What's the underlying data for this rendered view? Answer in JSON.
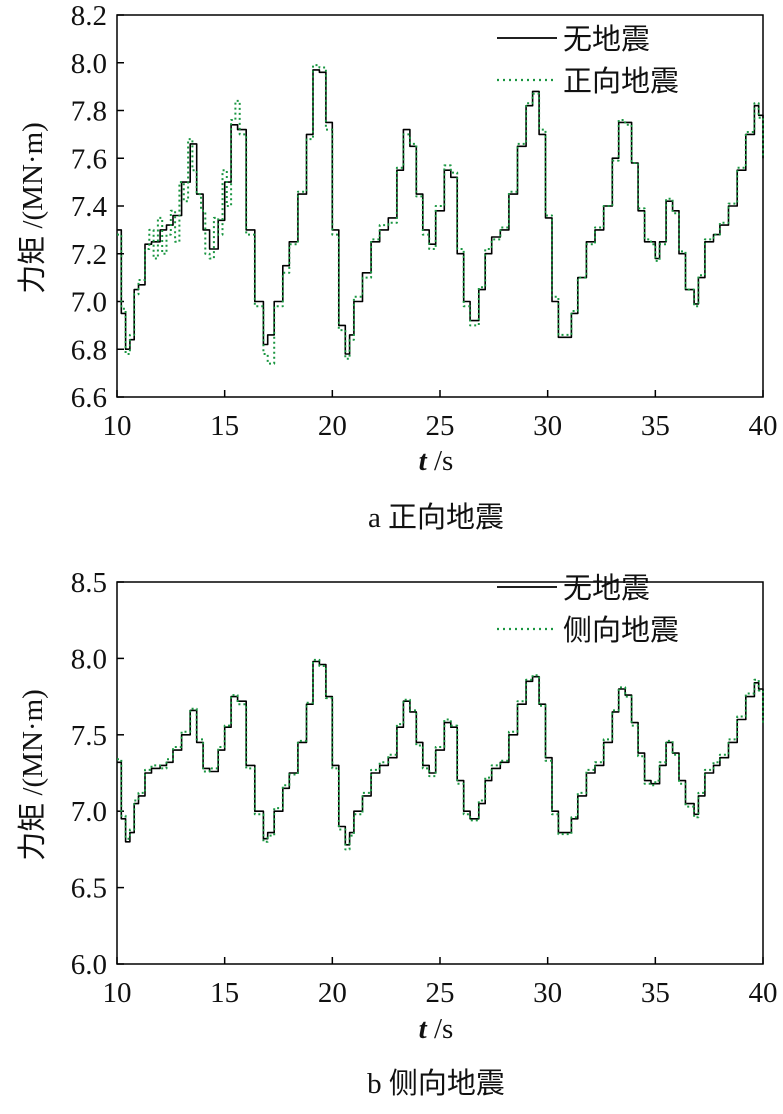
{
  "chart_data": [
    {
      "type": "line",
      "caption_letter": "a",
      "caption_text": "正向地震",
      "ylabel": "力矩 /(MN·m)",
      "xlabel_var": "t",
      "xlabel_unit": "/s",
      "xlim": [
        10,
        40
      ],
      "ylim": [
        6.6,
        8.2
      ],
      "xticks": [
        10,
        15,
        20,
        25,
        30,
        35,
        40
      ],
      "yticks": [
        6.6,
        6.8,
        7.0,
        7.2,
        7.4,
        7.6,
        7.8,
        8.0,
        8.2
      ],
      "ytick_labels": [
        "6.6",
        "6.8",
        "7.0",
        "7.2",
        "7.4",
        "7.6",
        "7.8",
        "8.0",
        "8.2"
      ],
      "legend_position": "top-right",
      "series": [
        {
          "name": "无地震",
          "color": "#000000",
          "style": "solid",
          "x": [
            10.0,
            10.2,
            10.4,
            10.6,
            10.8,
            11.0,
            11.3,
            11.6,
            12.0,
            12.3,
            12.6,
            13.0,
            13.4,
            13.7,
            14.0,
            14.3,
            14.7,
            15.0,
            15.3,
            15.6,
            16.0,
            16.4,
            16.8,
            17.0,
            17.3,
            17.7,
            18.0,
            18.4,
            18.8,
            19.1,
            19.4,
            19.7,
            20.0,
            20.3,
            20.6,
            20.8,
            21.0,
            21.4,
            21.8,
            22.2,
            22.6,
            23.0,
            23.3,
            23.6,
            23.9,
            24.2,
            24.5,
            24.8,
            25.2,
            25.5,
            25.8,
            26.1,
            26.4,
            26.8,
            27.1,
            27.4,
            27.8,
            28.2,
            28.6,
            29.0,
            29.3,
            29.6,
            29.9,
            30.2,
            30.5,
            30.8,
            31.1,
            31.4,
            31.8,
            32.2,
            32.6,
            33.0,
            33.3,
            33.6,
            33.9,
            34.2,
            34.5,
            34.8,
            35.0,
            35.2,
            35.5,
            35.8,
            36.1,
            36.4,
            36.8,
            37.0,
            37.3,
            37.7,
            38.0,
            38.4,
            38.8,
            39.2,
            39.6,
            39.8,
            40.0
          ],
          "y": [
            7.3,
            6.95,
            6.8,
            6.84,
            7.05,
            7.07,
            7.24,
            7.25,
            7.3,
            7.32,
            7.36,
            7.5,
            7.66,
            7.45,
            7.3,
            7.22,
            7.34,
            7.5,
            7.74,
            7.72,
            7.3,
            7.0,
            6.82,
            6.86,
            7.0,
            7.15,
            7.25,
            7.45,
            7.7,
            7.97,
            7.96,
            7.75,
            7.3,
            6.9,
            6.78,
            6.86,
            7.0,
            7.12,
            7.25,
            7.3,
            7.35,
            7.55,
            7.72,
            7.65,
            7.45,
            7.3,
            7.24,
            7.38,
            7.55,
            7.52,
            7.2,
            7.0,
            6.92,
            7.05,
            7.2,
            7.27,
            7.3,
            7.45,
            7.65,
            7.82,
            7.88,
            7.7,
            7.35,
            7.0,
            6.85,
            6.85,
            6.95,
            7.1,
            7.25,
            7.3,
            7.4,
            7.6,
            7.75,
            7.75,
            7.58,
            7.38,
            7.25,
            7.25,
            7.18,
            7.25,
            7.42,
            7.38,
            7.2,
            7.05,
            6.99,
            7.1,
            7.25,
            7.28,
            7.32,
            7.4,
            7.55,
            7.7,
            7.82,
            7.78,
            7.6
          ]
        },
        {
          "name": "正向地震",
          "color": "#1a9641",
          "style": "dotted",
          "x": [
            10.0,
            10.2,
            10.4,
            10.6,
            10.8,
            11.0,
            11.3,
            11.5,
            11.7,
            11.9,
            12.1,
            12.3,
            12.5,
            12.7,
            12.9,
            13.1,
            13.3,
            13.5,
            13.7,
            13.9,
            14.1,
            14.3,
            14.5,
            14.7,
            14.9,
            15.1,
            15.3,
            15.5,
            15.7,
            16.0,
            16.4,
            16.8,
            17.0,
            17.3,
            17.7,
            18.0,
            18.4,
            18.8,
            19.1,
            19.4,
            19.7,
            20.0,
            20.3,
            20.6,
            20.8,
            21.0,
            21.4,
            21.8,
            22.2,
            22.6,
            23.0,
            23.3,
            23.6,
            23.9,
            24.2,
            24.5,
            24.8,
            25.2,
            25.5,
            25.8,
            26.1,
            26.4,
            26.8,
            27.1,
            27.4,
            27.8,
            28.2,
            28.6,
            29.0,
            29.3,
            29.6,
            29.9,
            30.2,
            30.5,
            30.8,
            31.1,
            31.4,
            31.8,
            32.2,
            32.6,
            33.0,
            33.3,
            33.6,
            33.9,
            34.2,
            34.5,
            34.8,
            35.0,
            35.2,
            35.5,
            35.8,
            36.1,
            36.4,
            36.8,
            37.0,
            37.3,
            37.7,
            38.0,
            38.4,
            38.8,
            39.2,
            39.6,
            39.8,
            40.0
          ],
          "y": [
            7.28,
            6.97,
            6.78,
            6.86,
            7.03,
            7.09,
            7.22,
            7.3,
            7.18,
            7.35,
            7.2,
            7.28,
            7.38,
            7.25,
            7.5,
            7.42,
            7.68,
            7.55,
            7.45,
            7.38,
            7.2,
            7.18,
            7.35,
            7.28,
            7.55,
            7.4,
            7.76,
            7.84,
            7.7,
            7.28,
            6.98,
            6.78,
            6.74,
            6.98,
            7.12,
            7.24,
            7.46,
            7.68,
            7.99,
            7.98,
            7.72,
            7.28,
            6.88,
            6.76,
            6.84,
            7.02,
            7.1,
            7.26,
            7.32,
            7.33,
            7.56,
            7.7,
            7.66,
            7.44,
            7.28,
            7.22,
            7.4,
            7.57,
            7.54,
            7.22,
            6.98,
            6.9,
            7.06,
            7.22,
            7.26,
            7.31,
            7.46,
            7.66,
            7.83,
            7.87,
            7.72,
            7.36,
            7.02,
            6.86,
            6.86,
            6.96,
            7.1,
            7.24,
            7.31,
            7.4,
            7.59,
            7.76,
            7.74,
            7.58,
            7.39,
            7.26,
            7.24,
            7.17,
            7.24,
            7.43,
            7.37,
            7.21,
            7.05,
            6.98,
            7.11,
            7.26,
            7.28,
            7.33,
            7.41,
            7.56,
            7.71,
            7.83,
            7.77,
            7.61
          ]
        }
      ]
    },
    {
      "type": "line",
      "caption_letter": "b",
      "caption_text": "侧向地震",
      "ylabel": "力矩 /(MN·m)",
      "xlabel_var": "t",
      "xlabel_unit": "/s",
      "xlim": [
        10,
        40
      ],
      "ylim": [
        6.0,
        8.5
      ],
      "xticks": [
        10,
        15,
        20,
        25,
        30,
        35,
        40
      ],
      "yticks": [
        6.0,
        6.5,
        7.0,
        7.5,
        8.0,
        8.5
      ],
      "ytick_labels": [
        "6.0",
        "6.5",
        "7.0",
        "7.5",
        "8.0",
        "8.5"
      ],
      "legend_position": "top-right",
      "series": [
        {
          "name": "无地震",
          "color": "#000000",
          "style": "solid",
          "x": [
            10.0,
            10.2,
            10.4,
            10.6,
            10.8,
            11.0,
            11.3,
            11.6,
            12.0,
            12.3,
            12.6,
            13.0,
            13.4,
            13.7,
            14.0,
            14.3,
            14.7,
            15.0,
            15.3,
            15.6,
            16.0,
            16.4,
            16.8,
            17.0,
            17.3,
            17.7,
            18.0,
            18.4,
            18.8,
            19.1,
            19.4,
            19.7,
            20.0,
            20.3,
            20.6,
            20.8,
            21.0,
            21.4,
            21.8,
            22.2,
            22.6,
            23.0,
            23.3,
            23.6,
            23.9,
            24.2,
            24.5,
            24.8,
            25.2,
            25.5,
            25.8,
            26.1,
            26.4,
            26.8,
            27.1,
            27.4,
            27.8,
            28.2,
            28.6,
            29.0,
            29.3,
            29.6,
            29.9,
            30.2,
            30.5,
            30.8,
            31.1,
            31.4,
            31.8,
            32.2,
            32.6,
            33.0,
            33.3,
            33.6,
            33.9,
            34.2,
            34.5,
            34.8,
            35.0,
            35.2,
            35.5,
            35.8,
            36.1,
            36.4,
            36.8,
            37.0,
            37.3,
            37.7,
            38.0,
            38.4,
            38.8,
            39.2,
            39.6,
            39.8,
            40.0
          ],
          "y": [
            7.32,
            6.95,
            6.8,
            6.86,
            7.05,
            7.1,
            7.25,
            7.28,
            7.3,
            7.32,
            7.4,
            7.5,
            7.66,
            7.45,
            7.28,
            7.26,
            7.4,
            7.55,
            7.75,
            7.72,
            7.3,
            7.0,
            6.82,
            6.86,
            7.0,
            7.15,
            7.25,
            7.45,
            7.7,
            7.98,
            7.96,
            7.75,
            7.3,
            6.9,
            6.78,
            6.86,
            7.0,
            7.1,
            7.25,
            7.3,
            7.35,
            7.55,
            7.72,
            7.65,
            7.45,
            7.3,
            7.25,
            7.4,
            7.58,
            7.55,
            7.2,
            7.0,
            6.95,
            7.05,
            7.2,
            7.28,
            7.32,
            7.5,
            7.7,
            7.85,
            7.88,
            7.7,
            7.35,
            7.0,
            6.86,
            6.86,
            6.95,
            7.1,
            7.25,
            7.3,
            7.45,
            7.65,
            7.8,
            7.76,
            7.58,
            7.38,
            7.2,
            7.18,
            7.18,
            7.3,
            7.45,
            7.38,
            7.2,
            7.05,
            6.98,
            7.1,
            7.25,
            7.3,
            7.35,
            7.45,
            7.6,
            7.75,
            7.84,
            7.8,
            7.6
          ]
        },
        {
          "name": "侧向地震",
          "color": "#1a9641",
          "style": "dotted",
          "x": [
            10.0,
            10.2,
            10.4,
            10.6,
            10.8,
            11.0,
            11.3,
            11.6,
            12.0,
            12.3,
            12.6,
            13.0,
            13.4,
            13.7,
            14.0,
            14.3,
            14.7,
            15.0,
            15.3,
            15.6,
            16.0,
            16.4,
            16.8,
            17.0,
            17.3,
            17.7,
            18.0,
            18.4,
            18.8,
            19.1,
            19.4,
            19.7,
            20.0,
            20.3,
            20.6,
            20.8,
            21.0,
            21.4,
            21.8,
            22.2,
            22.6,
            23.0,
            23.3,
            23.6,
            23.9,
            24.2,
            24.5,
            24.8,
            25.2,
            25.5,
            25.8,
            26.1,
            26.4,
            26.8,
            27.1,
            27.4,
            27.8,
            28.2,
            28.6,
            29.0,
            29.3,
            29.6,
            29.9,
            30.2,
            30.5,
            30.8,
            31.1,
            31.4,
            31.8,
            32.2,
            32.6,
            33.0,
            33.3,
            33.6,
            33.9,
            34.2,
            34.5,
            34.8,
            35.0,
            35.2,
            35.5,
            35.8,
            36.1,
            36.4,
            36.8,
            37.0,
            37.3,
            37.7,
            38.0,
            38.4,
            38.8,
            39.2,
            39.6,
            39.8,
            40.0
          ],
          "y": [
            7.34,
            6.97,
            6.82,
            6.88,
            7.07,
            7.12,
            7.27,
            7.3,
            7.28,
            7.34,
            7.42,
            7.52,
            7.67,
            7.47,
            7.26,
            7.28,
            7.42,
            7.56,
            7.76,
            7.7,
            7.28,
            6.98,
            6.8,
            6.84,
            7.02,
            7.17,
            7.24,
            7.46,
            7.71,
            7.99,
            7.95,
            7.74,
            7.28,
            6.88,
            6.75,
            6.84,
            6.98,
            7.12,
            7.27,
            7.32,
            7.37,
            7.57,
            7.73,
            7.66,
            7.43,
            7.28,
            7.23,
            7.42,
            7.6,
            7.56,
            7.18,
            6.98,
            6.94,
            7.07,
            7.22,
            7.3,
            7.33,
            7.52,
            7.72,
            7.86,
            7.89,
            7.69,
            7.33,
            6.98,
            6.85,
            6.85,
            6.96,
            7.12,
            7.27,
            7.32,
            7.47,
            7.66,
            7.81,
            7.75,
            7.56,
            7.36,
            7.18,
            7.17,
            7.2,
            7.32,
            7.46,
            7.37,
            7.18,
            7.03,
            6.96,
            7.12,
            7.27,
            7.32,
            7.37,
            7.47,
            7.62,
            7.77,
            7.86,
            7.79,
            7.58
          ]
        }
      ]
    }
  ]
}
